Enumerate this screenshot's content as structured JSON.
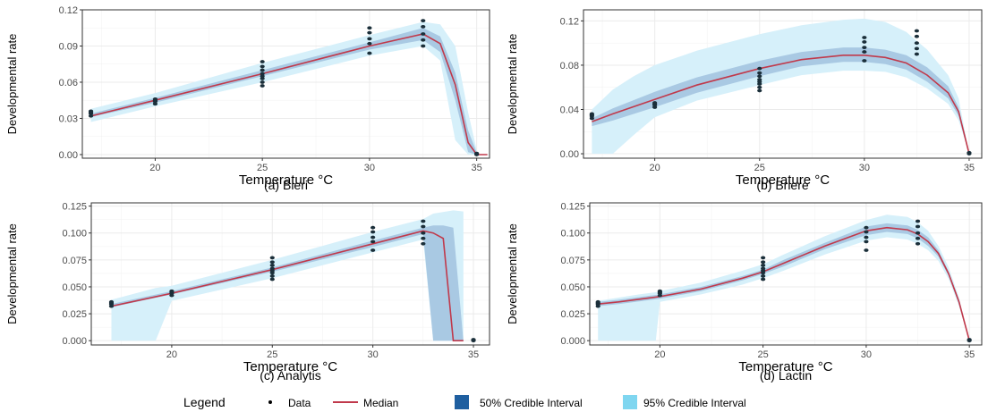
{
  "colors": {
    "ci95": "#d6f0fa",
    "ci50": "#a9c9e3",
    "median": "#c0394b",
    "points": "#1b2f3a",
    "legend_ci50": "#1f5fa0",
    "legend_ci95": "#7fd6f0",
    "grid": "#ebebeb",
    "panel_border": "#333333"
  },
  "legend": {
    "title": "Legend",
    "items": [
      {
        "label": "Data"
      },
      {
        "label": "Median"
      },
      {
        "label": "50% Credible Interval"
      },
      {
        "label": "95% Credible Interval"
      }
    ]
  },
  "chart_data": [
    {
      "type": "line",
      "caption": "(a) Bieri",
      "xlabel": "Temperature °C",
      "ylabel": "Developmental rate",
      "xlim": [
        16.6,
        35.6
      ],
      "ylim": [
        -0.003,
        0.12
      ],
      "xticks": [
        20,
        25,
        30,
        35
      ],
      "yticks": [
        0.0,
        0.03,
        0.06,
        0.09,
        0.12
      ],
      "ytick_labels": [
        "0.00",
        "0.03",
        "0.06",
        "0.09",
        "0.12"
      ],
      "data_points": {
        "x": [
          17,
          17,
          17,
          17,
          20,
          20,
          20,
          20,
          25,
          25,
          25,
          25,
          25,
          25,
          25,
          25,
          30,
          30,
          30,
          30,
          30,
          32.5,
          32.5,
          32.5,
          32.5,
          32.5,
          35,
          35
        ],
        "y": [
          0.032,
          0.034,
          0.035,
          0.036,
          0.042,
          0.044,
          0.045,
          0.046,
          0.057,
          0.06,
          0.063,
          0.065,
          0.067,
          0.07,
          0.073,
          0.077,
          0.084,
          0.092,
          0.096,
          0.101,
          0.105,
          0.09,
          0.095,
          0.1,
          0.106,
          0.111,
          0.0,
          0.001
        ]
      },
      "median": {
        "x": [
          17,
          20,
          25,
          30,
          32.5,
          33.3,
          34,
          34.6,
          35,
          35.5
        ],
        "y": [
          0.032,
          0.045,
          0.067,
          0.09,
          0.1,
          0.092,
          0.058,
          0.01,
          0.0,
          0.0
        ]
      },
      "ci50": {
        "x": [
          17,
          20,
          25,
          30,
          32.5,
          33.3,
          34,
          34.6,
          35
        ],
        "lower": [
          0.031,
          0.043,
          0.065,
          0.087,
          0.095,
          0.085,
          0.045,
          0.002,
          0.0
        ],
        "upper": [
          0.034,
          0.047,
          0.07,
          0.093,
          0.105,
          0.098,
          0.068,
          0.02,
          0.002
        ]
      },
      "ci95": {
        "x": [
          17,
          20,
          25,
          30,
          32.5,
          33.3,
          34,
          34.6,
          35
        ],
        "lower": [
          0.027,
          0.04,
          0.06,
          0.082,
          0.09,
          0.078,
          0.012,
          0.0,
          0.0
        ],
        "upper": [
          0.038,
          0.051,
          0.076,
          0.099,
          0.11,
          0.108,
          0.09,
          0.035,
          0.004
        ]
      }
    },
    {
      "type": "line",
      "caption": "(b) Briere",
      "xlabel": "Temperature °C",
      "ylabel": "Developmental rate",
      "xlim": [
        16.6,
        35.6
      ],
      "ylim": [
        -0.004,
        0.13
      ],
      "xticks": [
        20,
        25,
        30,
        35
      ],
      "yticks": [
        0.0,
        0.04,
        0.08,
        0.12
      ],
      "ytick_labels": [
        "0.00",
        "0.04",
        "0.08",
        "0.12"
      ],
      "data_points": {
        "x": [
          17,
          17,
          17,
          17,
          20,
          20,
          20,
          20,
          25,
          25,
          25,
          25,
          25,
          25,
          25,
          25,
          30,
          30,
          30,
          30,
          30,
          32.5,
          32.5,
          32.5,
          32.5,
          32.5,
          35,
          35
        ],
        "y": [
          0.032,
          0.034,
          0.035,
          0.036,
          0.042,
          0.044,
          0.045,
          0.046,
          0.057,
          0.06,
          0.063,
          0.065,
          0.067,
          0.07,
          0.073,
          0.077,
          0.084,
          0.092,
          0.096,
          0.101,
          0.105,
          0.09,
          0.095,
          0.1,
          0.106,
          0.111,
          0.0,
          0.001
        ]
      },
      "median": {
        "x": [
          17,
          18,
          20,
          22,
          25,
          27,
          29,
          30,
          31,
          32,
          33,
          34,
          34.5,
          35
        ],
        "y": [
          0.029,
          0.036,
          0.049,
          0.062,
          0.077,
          0.085,
          0.089,
          0.089,
          0.087,
          0.082,
          0.071,
          0.055,
          0.038,
          0.0
        ]
      },
      "ci50": {
        "x": [
          17,
          18,
          20,
          22,
          25,
          27,
          29,
          30,
          31,
          32,
          33,
          34,
          34.5,
          35
        ],
        "lower": [
          0.025,
          0.03,
          0.042,
          0.055,
          0.07,
          0.079,
          0.083,
          0.083,
          0.081,
          0.076,
          0.065,
          0.05,
          0.034,
          0.0
        ],
        "upper": [
          0.032,
          0.041,
          0.056,
          0.069,
          0.084,
          0.092,
          0.096,
          0.096,
          0.094,
          0.089,
          0.078,
          0.061,
          0.042,
          0.0
        ]
      },
      "ci95": {
        "x": [
          17,
          18,
          19,
          20,
          22,
          25,
          27,
          29,
          30,
          31,
          32,
          33,
          34,
          34.5,
          35
        ],
        "lower": [
          0.0,
          0.0,
          0.017,
          0.033,
          0.048,
          0.062,
          0.071,
          0.075,
          0.075,
          0.074,
          0.069,
          0.059,
          0.045,
          0.03,
          0.0
        ],
        "upper": [
          0.04,
          0.058,
          0.07,
          0.08,
          0.093,
          0.108,
          0.116,
          0.121,
          0.122,
          0.119,
          0.11,
          0.094,
          0.071,
          0.05,
          0.0
        ]
      }
    },
    {
      "type": "line",
      "caption": "(c) Analytis",
      "xlabel": "Temperature °C",
      "ylabel": "Developmental rate",
      "xlim": [
        16,
        35.8
      ],
      "ylim": [
        -0.004,
        0.128
      ],
      "xticks": [
        20,
        25,
        30,
        35
      ],
      "yticks": [
        0.0,
        0.025,
        0.05,
        0.075,
        0.1,
        0.125
      ],
      "ytick_labels": [
        "0.000",
        "0.025",
        "0.050",
        "0.075",
        "0.100",
        "0.125"
      ],
      "data_points": {
        "x": [
          17,
          17,
          17,
          17,
          20,
          20,
          20,
          20,
          25,
          25,
          25,
          25,
          25,
          25,
          25,
          25,
          30,
          30,
          30,
          30,
          30,
          32.5,
          32.5,
          32.5,
          32.5,
          32.5,
          35,
          35
        ],
        "y": [
          0.032,
          0.034,
          0.035,
          0.036,
          0.042,
          0.044,
          0.045,
          0.046,
          0.057,
          0.06,
          0.063,
          0.065,
          0.067,
          0.07,
          0.073,
          0.077,
          0.084,
          0.092,
          0.096,
          0.101,
          0.105,
          0.09,
          0.095,
          0.1,
          0.106,
          0.111,
          0.0,
          0.001
        ]
      },
      "median": {
        "x": [
          17,
          20,
          25,
          30,
          32.5,
          33,
          33.5,
          34,
          34.5
        ],
        "y": [
          0.032,
          0.044,
          0.066,
          0.09,
          0.102,
          0.1,
          0.095,
          0.0,
          0.0
        ]
      },
      "ci50": {
        "x": [
          17,
          20,
          25,
          30,
          32.5,
          33,
          33.5,
          34,
          34.5
        ],
        "lower": [
          0.031,
          0.043,
          0.064,
          0.087,
          0.099,
          0.0,
          0.0,
          0.0,
          0.0
        ],
        "upper": [
          0.034,
          0.046,
          0.068,
          0.093,
          0.105,
          0.107,
          0.107,
          0.105,
          0.0
        ]
      },
      "ci95": {
        "x": [
          17,
          19.2,
          20,
          25,
          30,
          32.5,
          33,
          34,
          34.5
        ],
        "lower": [
          0.0,
          0.0,
          0.037,
          0.058,
          0.082,
          0.094,
          0.0,
          0.0,
          0.0
        ],
        "upper": [
          0.038,
          0.049,
          0.051,
          0.075,
          0.101,
          0.113,
          0.118,
          0.121,
          0.12
        ]
      }
    },
    {
      "type": "line",
      "caption": "(d) Lactin",
      "xlabel": "Temperature °C",
      "ylabel": "Developmental rate",
      "xlim": [
        16.6,
        35.6
      ],
      "ylim": [
        -0.004,
        0.128
      ],
      "xticks": [
        20,
        25,
        30,
        35
      ],
      "yticks": [
        0.0,
        0.025,
        0.05,
        0.075,
        0.1,
        0.125
      ],
      "ytick_labels": [
        "0.000",
        "0.025",
        "0.050",
        "0.075",
        "0.100",
        "0.125"
      ],
      "data_points": {
        "x": [
          17,
          17,
          17,
          17,
          20,
          20,
          20,
          20,
          25,
          25,
          25,
          25,
          25,
          25,
          25,
          25,
          30,
          30,
          30,
          30,
          30,
          32.5,
          32.5,
          32.5,
          32.5,
          32.5,
          35,
          35
        ],
        "y": [
          0.032,
          0.034,
          0.035,
          0.036,
          0.042,
          0.044,
          0.045,
          0.046,
          0.057,
          0.06,
          0.063,
          0.065,
          0.067,
          0.07,
          0.073,
          0.077,
          0.084,
          0.092,
          0.096,
          0.101,
          0.105,
          0.09,
          0.095,
          0.1,
          0.106,
          0.111,
          0.0,
          0.001
        ]
      },
      "median": {
        "x": [
          17,
          18,
          20,
          22,
          24,
          25,
          26,
          28,
          30,
          31,
          32,
          32.5,
          33,
          33.5,
          34,
          34.5,
          35
        ],
        "y": [
          0.034,
          0.036,
          0.041,
          0.048,
          0.058,
          0.064,
          0.072,
          0.088,
          0.102,
          0.105,
          0.103,
          0.099,
          0.092,
          0.081,
          0.062,
          0.036,
          0.0
        ]
      },
      "ci50": {
        "x": [
          17,
          18,
          20,
          22,
          24,
          25,
          26,
          28,
          30,
          31,
          32,
          32.5,
          33,
          33.5,
          34,
          34.5,
          35
        ],
        "lower": [
          0.032,
          0.034,
          0.039,
          0.046,
          0.056,
          0.062,
          0.069,
          0.085,
          0.098,
          0.101,
          0.099,
          0.095,
          0.088,
          0.078,
          0.06,
          0.034,
          0.0
        ],
        "upper": [
          0.036,
          0.038,
          0.043,
          0.05,
          0.06,
          0.066,
          0.075,
          0.091,
          0.106,
          0.109,
          0.107,
          0.103,
          0.096,
          0.084,
          0.064,
          0.038,
          0.0
        ]
      },
      "ci95": {
        "x": [
          17,
          18,
          19,
          19.8,
          20,
          22,
          24,
          25,
          26,
          28,
          30,
          31,
          32,
          32.5,
          33,
          33.5,
          34,
          34.5,
          35
        ],
        "lower": [
          0.0,
          0.0,
          0.0,
          0.0,
          0.036,
          0.043,
          0.052,
          0.058,
          0.065,
          0.08,
          0.093,
          0.096,
          0.094,
          0.09,
          0.084,
          0.074,
          0.057,
          0.032,
          0.0
        ],
        "upper": [
          0.037,
          0.04,
          0.043,
          0.045,
          0.046,
          0.054,
          0.065,
          0.071,
          0.08,
          0.097,
          0.112,
          0.117,
          0.115,
          0.11,
          0.102,
          0.088,
          0.068,
          0.04,
          0.0
        ]
      }
    }
  ]
}
